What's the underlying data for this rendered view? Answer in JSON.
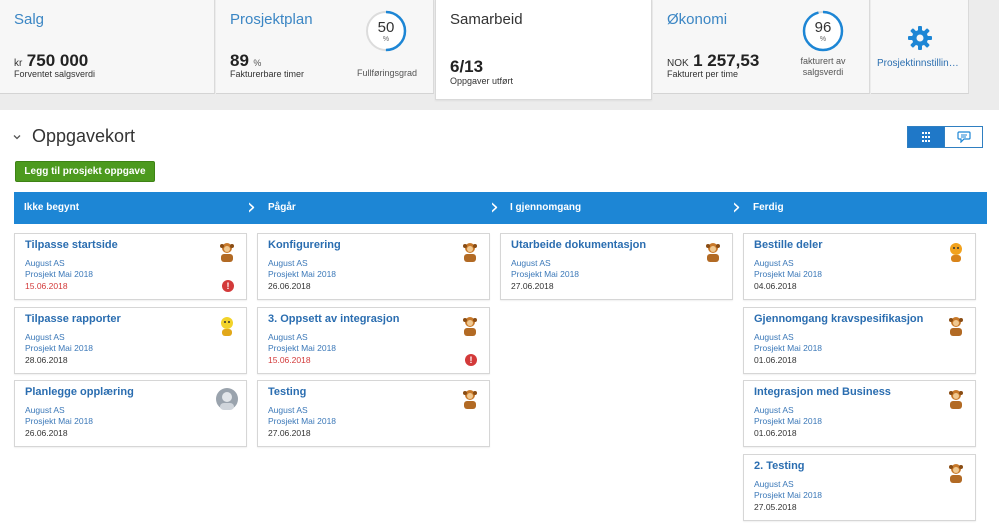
{
  "summary": {
    "sales": {
      "title": "Salg",
      "currency": "kr",
      "value": "750 000",
      "subtitle": "Forventet salgsverdi"
    },
    "projectplan": {
      "title": "Prosjektplan",
      "value": "89",
      "unit": "%",
      "subtitle": "Fakturerbare timer",
      "gauge_value": "50",
      "gauge_unit": "%",
      "gauge_caption": "Fullføringsgrad",
      "gauge_fraction": 0.5
    },
    "collaboration": {
      "title": "Samarbeid",
      "value": "6/13",
      "subtitle": "Oppgaver utført"
    },
    "economy": {
      "title": "Økonomi",
      "currency": "NOK",
      "value": "1 257,53",
      "subtitle": "Fakturert per time",
      "gauge_value": "96",
      "gauge_unit": "%",
      "gauge_caption_1": "fakturert av",
      "gauge_caption_2": "salgsverdi",
      "gauge_fraction": 0.96
    },
    "settings": {
      "label": "Prosjektinnstillin…",
      "icon": "gear-icon"
    }
  },
  "section": {
    "toggle": "›",
    "title": "Oppgavekort"
  },
  "add_button": "Legg til prosjekt oppgave",
  "columns": [
    {
      "name": "Ikke begynt"
    },
    {
      "name": "Pågår"
    },
    {
      "name": "I gjennomgang"
    },
    {
      "name": "Ferdig"
    }
  ],
  "cards": [
    [
      {
        "title": "Tilpasse startside",
        "customer": "August AS",
        "project": "Prosjekt Mai 2018",
        "date": "15.06.2018",
        "overdue": true,
        "avatar": "character"
      },
      {
        "title": "Tilpasse rapporter",
        "customer": "August AS",
        "project": "Prosjekt Mai 2018",
        "date": "28.06.2018",
        "overdue": false,
        "avatar": "character-yellow"
      },
      {
        "title": "Planlegge opplæring",
        "customer": "August AS",
        "project": "Prosjekt Mai 2018",
        "date": "26.06.2018",
        "overdue": false,
        "avatar": "photo"
      }
    ],
    [
      {
        "title": "Konfigurering",
        "customer": "August AS",
        "project": "Prosjekt Mai 2018",
        "date": "26.06.2018",
        "overdue": false,
        "avatar": "character"
      },
      {
        "title": "3. Oppsett av integrasjon",
        "customer": "August AS",
        "project": "Prosjekt Mai 2018",
        "date": "15.06.2018",
        "overdue": true,
        "avatar": "character"
      },
      {
        "title": "Testing",
        "customer": "August AS",
        "project": "Prosjekt Mai 2018",
        "date": "27.06.2018",
        "overdue": false,
        "avatar": "character"
      }
    ],
    [
      {
        "title": "Utarbeide dokumentasjon",
        "customer": "August AS",
        "project": "Prosjekt Mai 2018",
        "date": "27.06.2018",
        "overdue": false,
        "avatar": "character"
      }
    ],
    [
      {
        "title": "Bestille deler",
        "customer": "August AS",
        "project": "Prosjekt Mai 2018",
        "date": "04.06.2018",
        "overdue": false,
        "avatar": "character-orange"
      },
      {
        "title": "Gjennomgang kravspesifikasjon",
        "customer": "August AS",
        "project": "Prosjekt Mai 2018",
        "date": "01.06.2018",
        "overdue": false,
        "avatar": "character"
      },
      {
        "title": "Integrasjon med Business",
        "customer": "August AS",
        "project": "Prosjekt Mai 2018",
        "date": "01.06.2018",
        "overdue": false,
        "avatar": "character"
      },
      {
        "title": "2. Testing",
        "customer": "August AS",
        "project": "Prosjekt Mai 2018",
        "date": "27.05.2018",
        "overdue": false,
        "avatar": "character"
      }
    ]
  ],
  "colors": {
    "accent": "#1d86d5",
    "link": "#2a6db0",
    "overdue": "#d33a3a",
    "add_button": "#4c9a1e"
  }
}
